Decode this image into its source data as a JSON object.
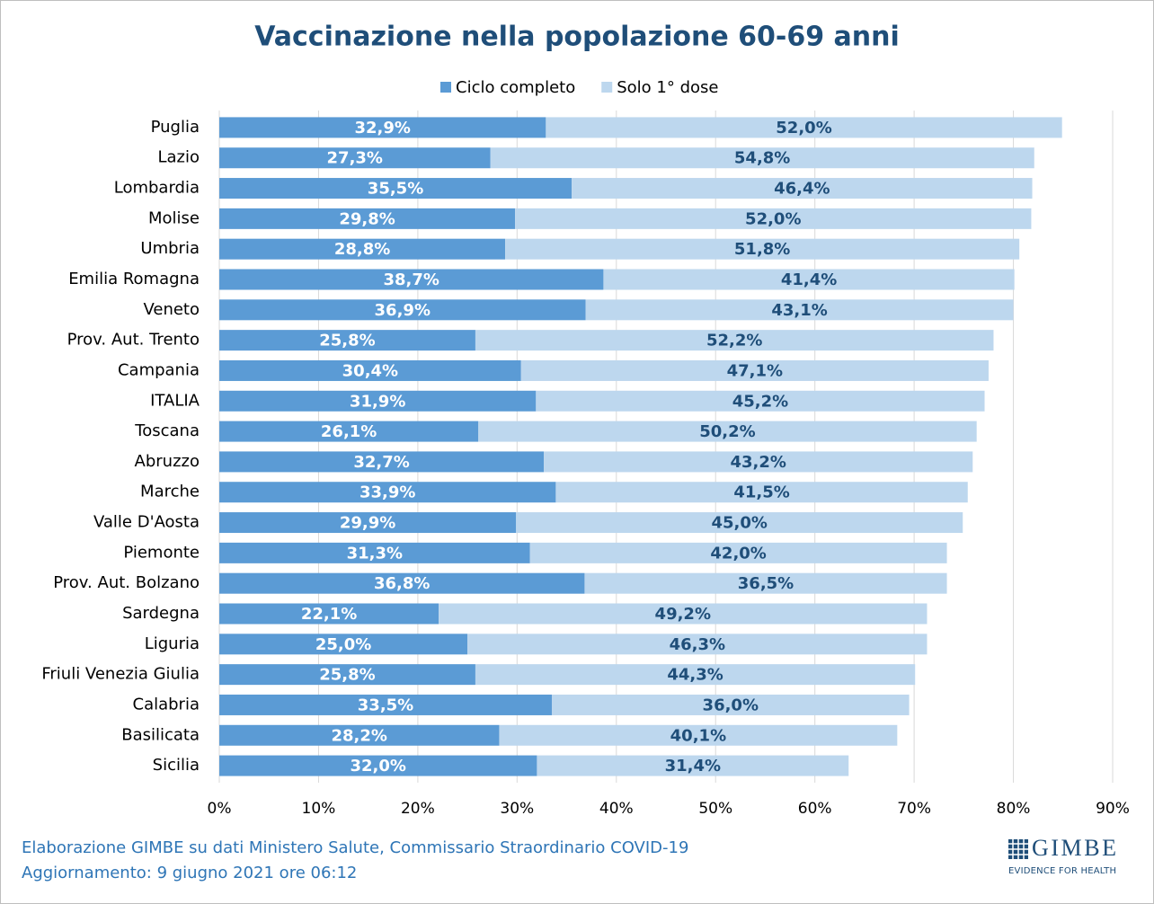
{
  "chart_data": {
    "type": "bar",
    "orientation": "horizontal",
    "stacked": true,
    "title": "Vaccinazione nella popolazione 60-69 anni",
    "categories": [
      "Puglia",
      "Lazio",
      "Lombardia",
      "Molise",
      "Umbria",
      "Emilia Romagna",
      "Veneto",
      "Prov. Aut. Trento",
      "Campania",
      "ITALIA",
      "Toscana",
      "Abruzzo",
      "Marche",
      "Valle D'Aosta",
      "Piemonte",
      "Prov. Aut. Bolzano",
      "Sardegna",
      "Liguria",
      "Friuli Venezia Giulia",
      "Calabria",
      "Basilicata",
      "Sicilia"
    ],
    "series": [
      {
        "name": "Ciclo completo",
        "color": "#5b9bd5",
        "label_color": "#ffffff",
        "values": [
          32.9,
          27.3,
          35.5,
          29.8,
          28.8,
          38.7,
          36.9,
          25.8,
          30.4,
          31.9,
          26.1,
          32.7,
          33.9,
          29.9,
          31.3,
          36.8,
          22.1,
          25.0,
          25.8,
          33.5,
          28.2,
          32.0
        ],
        "value_labels": [
          "32,9%",
          "27,3%",
          "35,5%",
          "29,8%",
          "28,8%",
          "38,7%",
          "36,9%",
          "25,8%",
          "30,4%",
          "31,9%",
          "26,1%",
          "32,7%",
          "33,9%",
          "29,9%",
          "31,3%",
          "36,8%",
          "22,1%",
          "25,0%",
          "25,8%",
          "33,5%",
          "28,2%",
          "32,0%"
        ]
      },
      {
        "name": "Solo 1° dose",
        "color": "#bdd7ee",
        "label_color": "#1f4e79",
        "values": [
          52.0,
          54.8,
          46.4,
          52.0,
          51.8,
          41.4,
          43.1,
          52.2,
          47.1,
          45.2,
          50.2,
          43.2,
          41.5,
          45.0,
          42.0,
          36.5,
          49.2,
          46.3,
          44.3,
          36.0,
          40.1,
          31.4
        ],
        "value_labels": [
          "52,0%",
          "54,8%",
          "46,4%",
          "52,0%",
          "51,8%",
          "41,4%",
          "43,1%",
          "52,2%",
          "47,1%",
          "45,2%",
          "50,2%",
          "43,2%",
          "41,5%",
          "45,0%",
          "42,0%",
          "36,5%",
          "49,2%",
          "46,3%",
          "44,3%",
          "36,0%",
          "40,1%",
          "31,4%"
        ]
      }
    ],
    "xlim": [
      0,
      90
    ],
    "xticks": [
      {
        "value": 0,
        "label": "0%"
      },
      {
        "value": 10,
        "label": "10%"
      },
      {
        "value": 20,
        "label": "20%"
      },
      {
        "value": 30,
        "label": "30%"
      },
      {
        "value": 40,
        "label": "40%"
      },
      {
        "value": 50,
        "label": "50%"
      },
      {
        "value": 60,
        "label": "60%"
      },
      {
        "value": 70,
        "label": "70%"
      },
      {
        "value": 80,
        "label": "80%"
      },
      {
        "value": 90,
        "label": "90%"
      }
    ],
    "grid": true,
    "legend": "top",
    "source": "Elaborazione GIMBE su dati Ministero Salute, Commissario Straordinario COVID-19",
    "updated": "Aggiornamento: 9 giugno 2021 ore 06:12",
    "logo": {
      "text": "GIMBE",
      "tagline": "EVIDENCE FOR HEALTH"
    }
  }
}
